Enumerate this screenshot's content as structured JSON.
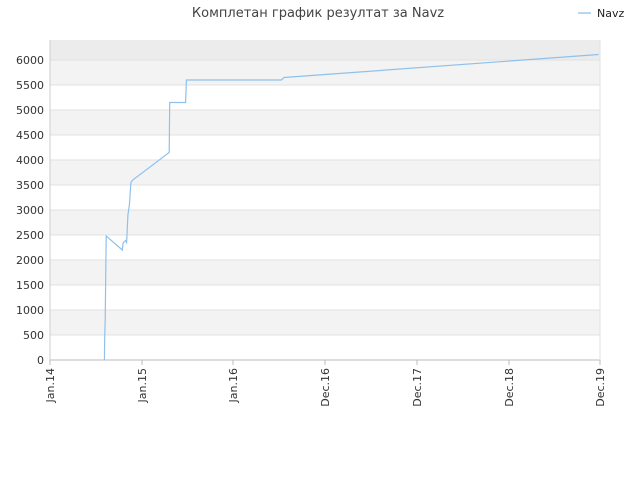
{
  "chart_data": {
    "type": "line",
    "title": "Комплетан график резултат за Navz",
    "xlabel": "",
    "ylabel": "",
    "x_ticks": [
      "Jan.14",
      "Jan.15",
      "Jan.16",
      "Dec.16",
      "Dec.17",
      "Dec.18",
      "Dec.19"
    ],
    "y_ticks": [
      0,
      500,
      1000,
      1500,
      2000,
      2500,
      3000,
      3500,
      4000,
      4500,
      5000,
      5500,
      6000
    ],
    "ylim": [
      0,
      6400
    ],
    "grid": true,
    "legend": "top-right",
    "colors": {
      "line": "#8fc1ec",
      "band": "#f3f3f3",
      "top_band": "#ececec",
      "grid": "#e2e2e2"
    },
    "series": [
      {
        "name": "Navz",
        "points": [
          [
            "2014-08-05",
            0
          ],
          [
            "2014-08-06",
            450
          ],
          [
            "2014-08-08",
            800
          ],
          [
            "2014-08-12",
            2480
          ],
          [
            "2014-10-15",
            2200
          ],
          [
            "2014-10-18",
            2340
          ],
          [
            "2014-10-28",
            2390
          ],
          [
            "2014-11-01",
            2350
          ],
          [
            "2014-11-03",
            2550
          ],
          [
            "2014-11-06",
            2900
          ],
          [
            "2014-11-12",
            3100
          ],
          [
            "2014-11-18",
            3550
          ],
          [
            "2014-11-25",
            3600
          ],
          [
            "2015-04-20",
            4150
          ],
          [
            "2015-04-22",
            5150
          ],
          [
            "2015-06-25",
            5150
          ],
          [
            "2015-06-28",
            5600
          ],
          [
            "2016-06-25",
            5600
          ],
          [
            "2016-07-05",
            5650
          ],
          [
            "2019-11-25",
            6110
          ]
        ]
      }
    ]
  }
}
